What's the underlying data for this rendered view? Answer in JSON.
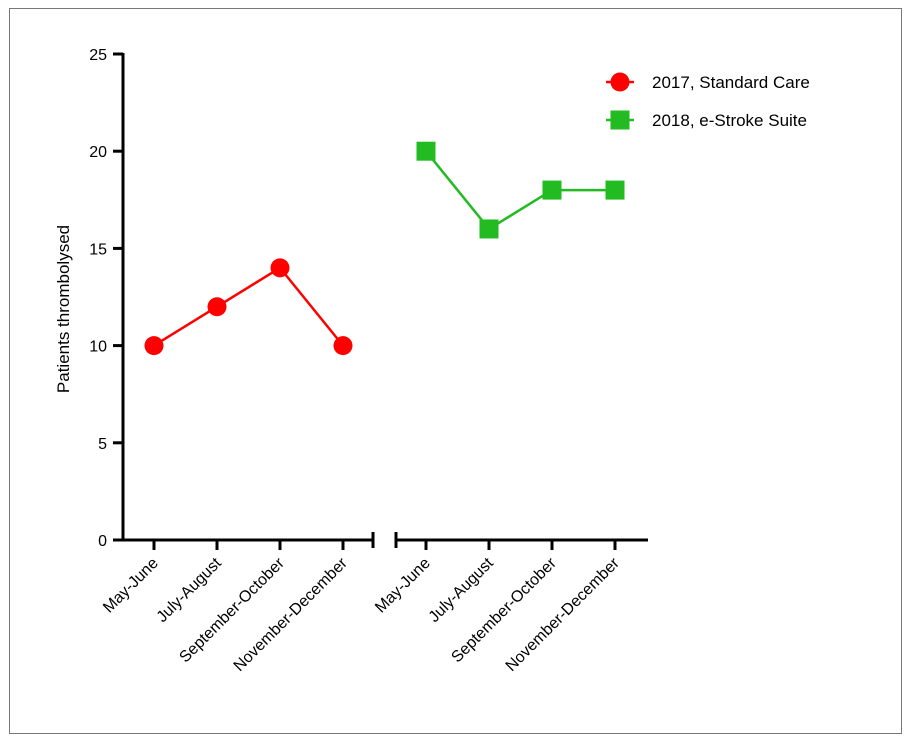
{
  "chart_data": {
    "type": "line",
    "title": "",
    "xlabel": "",
    "ylabel": "Patients thrombolysed",
    "ylim": [
      0,
      25
    ],
    "yticks": [
      0,
      5,
      10,
      15,
      20,
      25
    ],
    "grid": false,
    "legend_position": "top-right",
    "axis_break": true,
    "series": [
      {
        "name": "2017, Standard Care",
        "marker": "circle",
        "color": "#ff0000",
        "categories": [
          "May-June",
          "July-August",
          "September-October",
          "November-December"
        ],
        "values": [
          10,
          12,
          14,
          10
        ]
      },
      {
        "name": "2018, e-Stroke Suite",
        "marker": "square",
        "color": "#22bb22",
        "categories": [
          "May-June",
          "July-August",
          "September-October",
          "November-December"
        ],
        "values": [
          20,
          16,
          18,
          18
        ]
      }
    ]
  }
}
